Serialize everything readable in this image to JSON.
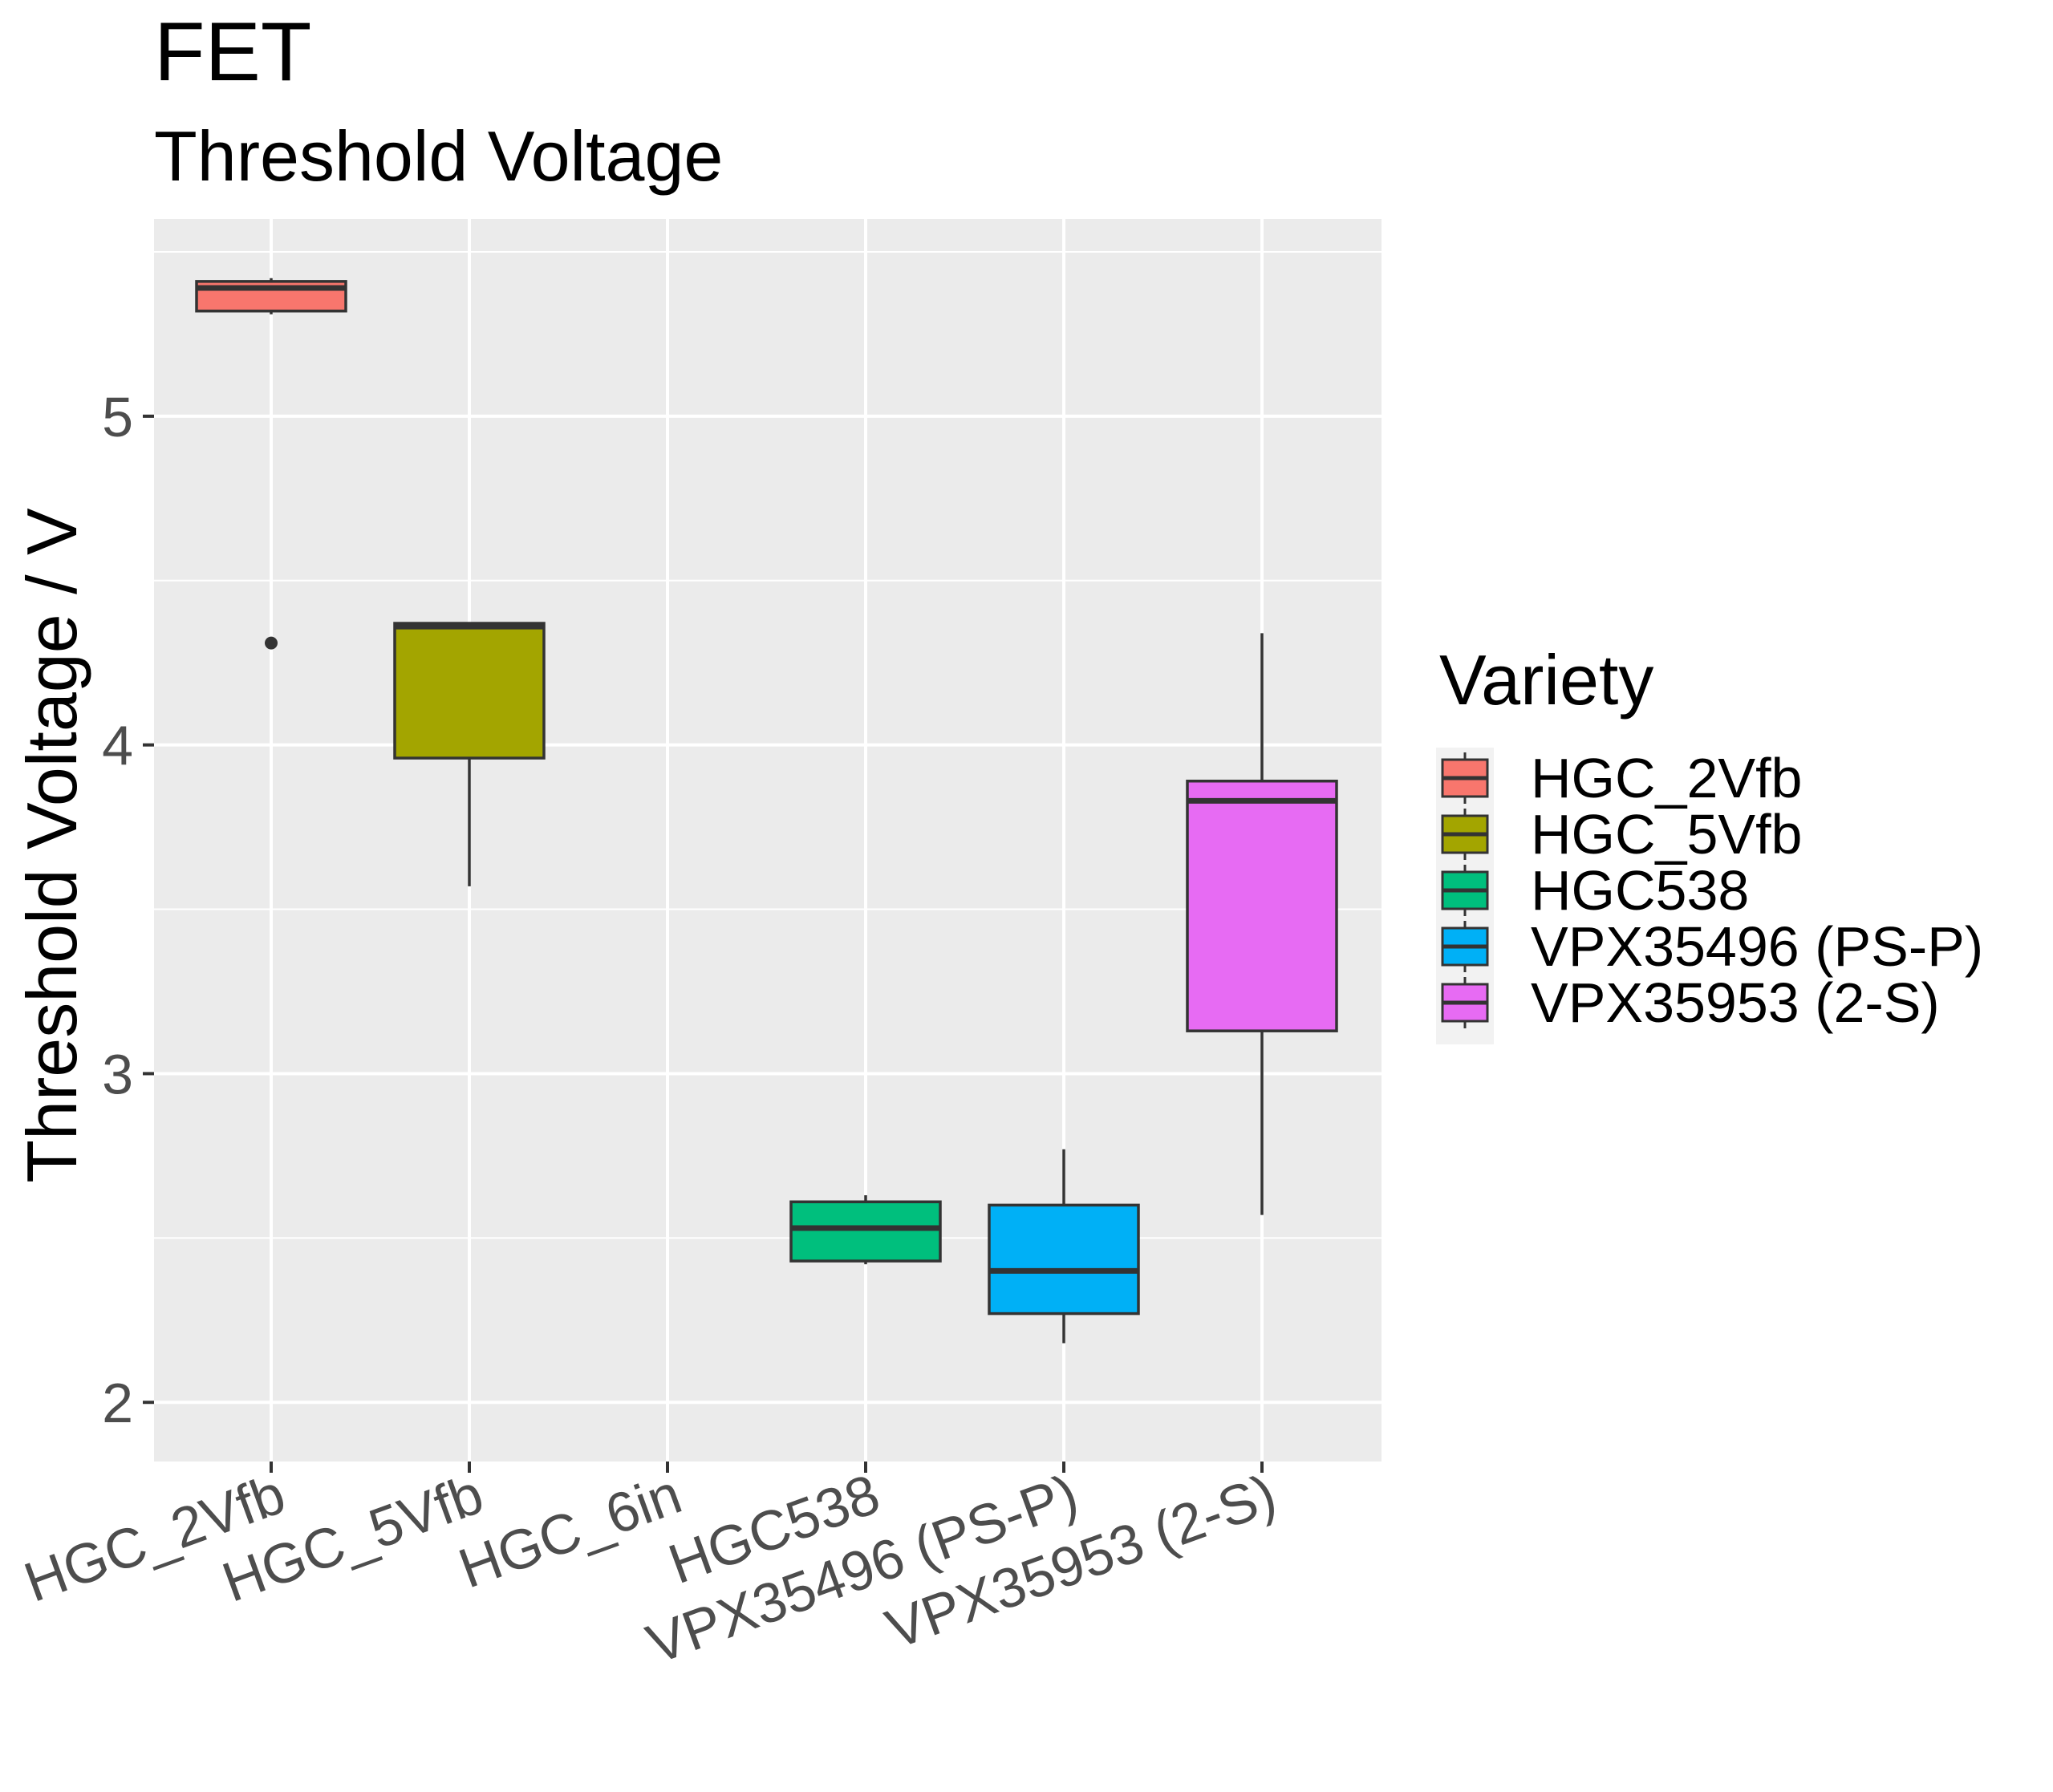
{
  "chart_data": {
    "type": "boxplot",
    "title": "FET",
    "subtitle": "Threshold Voltage",
    "xlabel": "",
    "ylabel": "Threshold Voltage / V",
    "ylim": [
      1.82,
      5.6
    ],
    "y_ticks": [
      2,
      3,
      4,
      5
    ],
    "grid": true,
    "categories": [
      "HGC_2Vfb",
      "HGC_5Vfb",
      "HGC_6in",
      "HGC538",
      "VPX35496 (PS-P)",
      "VPX35953 (2-S)"
    ],
    "legend": {
      "title": "Variety",
      "position": "right",
      "entries": [
        "HGC_2Vfb",
        "HGC_5Vfb",
        "HGC538",
        "VPX35496 (PS-P)",
        "VPX35953 (2-S)"
      ]
    },
    "boxes": [
      {
        "category": "HGC_2Vfb",
        "color": "#F8766D",
        "whisker_low": 5.31,
        "q1": 5.32,
        "median": 5.39,
        "q3": 5.41,
        "whisker_high": 5.42,
        "outliers": [
          4.31
        ]
      },
      {
        "category": "HGC_5Vfb",
        "color": "#A3A500",
        "whisker_low": 3.57,
        "q1": 3.96,
        "median": 4.36,
        "q3": 4.37,
        "whisker_high": 4.37,
        "outliers": []
      },
      {
        "category": "HGC538",
        "color": "#00BF7D",
        "whisker_low": 2.42,
        "q1": 2.43,
        "median": 2.53,
        "q3": 2.61,
        "whisker_high": 2.63,
        "outliers": []
      },
      {
        "category": "VPX35496 (PS-P)",
        "color": "#00B0F6",
        "whisker_low": 2.18,
        "q1": 2.27,
        "median": 2.4,
        "q3": 2.6,
        "whisker_high": 2.77,
        "outliers": []
      },
      {
        "category": "VPX35953 (2-S)",
        "color": "#E76BF3",
        "whisker_low": 2.57,
        "q1": 3.13,
        "median": 3.83,
        "q3": 3.89,
        "whisker_high": 4.34,
        "outliers": []
      }
    ]
  }
}
